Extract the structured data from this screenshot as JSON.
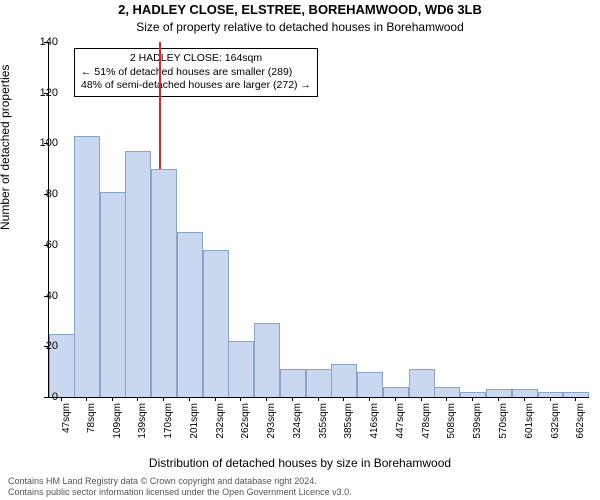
{
  "chart": {
    "type": "histogram",
    "title_main": "2, HADLEY CLOSE, ELSTREE, BOREHAMWOOD, WD6 3LB",
    "title_sub": "Size of property relative to detached houses in Borehamwood",
    "ylabel": "Number of detached properties",
    "xlabel": "Distribution of detached houses by size in Borehamwood",
    "title_fontsize": 13,
    "subtitle_fontsize": 12,
    "label_fontsize": 12,
    "tick_fontsize": 11,
    "xtick_fontsize": 10,
    "background_color": "#ffffff",
    "axis_color": "#000000",
    "bar_fill": "#c9d8ef",
    "bar_edge": "#8aa3c9",
    "ref_line_color": "#d62728",
    "ref_line_value": 164,
    "ylim": [
      0,
      140
    ],
    "ytick_step": 20,
    "xlim": [
      32,
      678
    ],
    "annotation": {
      "line1": "2 HADLEY CLOSE: 164sqm",
      "line2": "← 51% of detached houses are smaller (289)",
      "line3": "48% of semi-detached houses are larger (272) →",
      "box_border": "#000000",
      "box_bg": "#ffffff"
    },
    "bins": [
      {
        "label": "47sqm",
        "x": 47,
        "value": 25
      },
      {
        "label": "78sqm",
        "x": 78,
        "value": 103
      },
      {
        "label": "109sqm",
        "x": 109,
        "value": 81
      },
      {
        "label": "139sqm",
        "x": 139,
        "value": 97
      },
      {
        "label": "170sqm",
        "x": 170,
        "value": 90
      },
      {
        "label": "201sqm",
        "x": 201,
        "value": 65
      },
      {
        "label": "232sqm",
        "x": 232,
        "value": 58
      },
      {
        "label": "262sqm",
        "x": 262,
        "value": 22
      },
      {
        "label": "293sqm",
        "x": 293,
        "value": 29
      },
      {
        "label": "324sqm",
        "x": 324,
        "value": 11
      },
      {
        "label": "355sqm",
        "x": 355,
        "value": 11
      },
      {
        "label": "385sqm",
        "x": 385,
        "value": 13
      },
      {
        "label": "416sqm",
        "x": 416,
        "value": 10
      },
      {
        "label": "447sqm",
        "x": 447,
        "value": 4
      },
      {
        "label": "478sqm",
        "x": 478,
        "value": 11
      },
      {
        "label": "508sqm",
        "x": 508,
        "value": 4
      },
      {
        "label": "539sqm",
        "x": 539,
        "value": 2
      },
      {
        "label": "570sqm",
        "x": 570,
        "value": 3
      },
      {
        "label": "601sqm",
        "x": 601,
        "value": 3
      },
      {
        "label": "632sqm",
        "x": 632,
        "value": 2
      },
      {
        "label": "662sqm",
        "x": 662,
        "value": 2
      }
    ],
    "bar_width_ratio": 1.0,
    "footer_line1": "Contains HM Land Registry data © Crown copyright and database right 2024.",
    "footer_line2": "Contains public sector information licensed under the Open Government Licence v3.0."
  }
}
